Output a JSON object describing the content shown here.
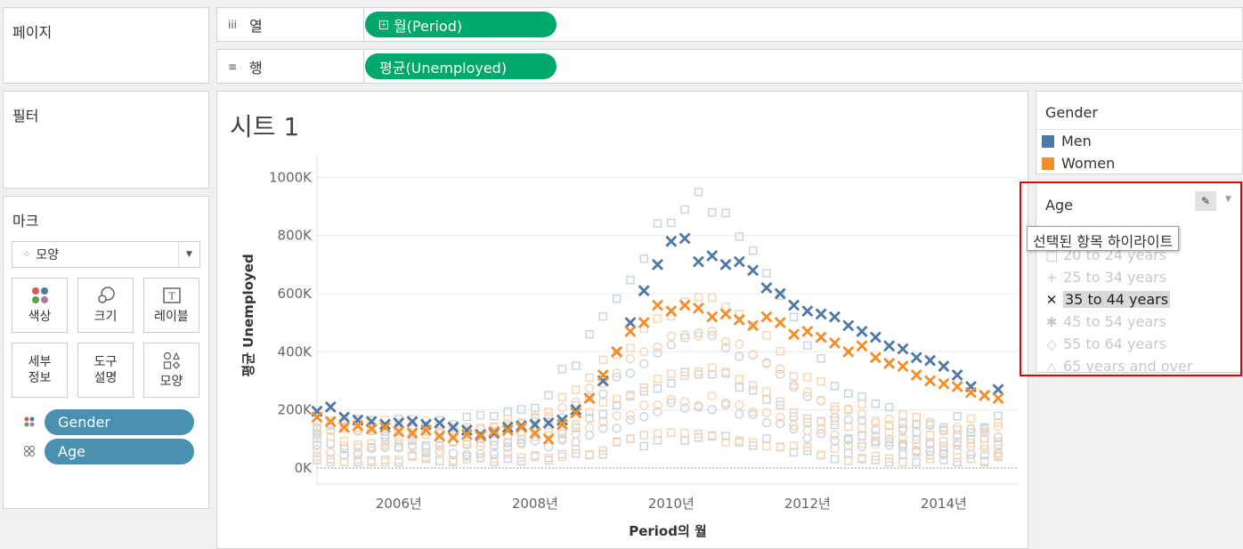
{
  "pages": {
    "title": "페이지"
  },
  "filters": {
    "title": "필터"
  },
  "columns": {
    "label": "열",
    "icon": "iii",
    "pill": "월(Period)"
  },
  "rows": {
    "label": "행",
    "icon": "≡",
    "pill": "평균(Unemployed)"
  },
  "marks": {
    "title": "마크",
    "type_label": "모양",
    "buttons": [
      {
        "label": "색상",
        "icon": "color-icon"
      },
      {
        "label": "크기",
        "icon": "size-icon"
      },
      {
        "label": "레이블",
        "icon": "label-icon"
      },
      {
        "label": "세부\n정보",
        "icon": "detail-icon"
      },
      {
        "label": "도구\n설명",
        "icon": "tooltip-icon"
      },
      {
        "label": "모양",
        "icon": "shape-icon"
      }
    ],
    "pills": [
      {
        "label": "Gender",
        "icon": "color-dots-icon"
      },
      {
        "label": "Age",
        "icon": "shape-dots-icon"
      }
    ]
  },
  "sheet": {
    "title": "시트 1"
  },
  "gender_legend": {
    "title": "Gender",
    "items": [
      {
        "label": "Men",
        "color": "#4e79a7"
      },
      {
        "label": "Women",
        "color": "#f28e2b"
      }
    ]
  },
  "age_legend": {
    "title": "Age",
    "tooltip": "선택된 항목 하이라이트",
    "items": [
      {
        "label": "20 to 24 years",
        "symbol": "□"
      },
      {
        "label": "25 to 34 years",
        "symbol": "+"
      },
      {
        "label": "35 to 44 years",
        "symbol": "✕",
        "selected": true
      },
      {
        "label": "45 to 54 years",
        "symbol": "✱"
      },
      {
        "label": "55 to 64 years",
        "symbol": "◇"
      },
      {
        "label": "65 years and over",
        "symbol": "△"
      }
    ]
  },
  "chart_data": {
    "type": "scatter",
    "xlabel": "Period의 월",
    "ylabel": "평균 Unemployed",
    "y_ticks": [
      "0K",
      "200K",
      "400K",
      "600K",
      "800K",
      "1000K"
    ],
    "x_ticks": [
      "2006년",
      "2008년",
      "2010년",
      "2012년",
      "2014년"
    ],
    "ylim": [
      0,
      1050000
    ],
    "xlim": [
      2005.0,
      2015.3
    ],
    "highlighted_series": "35 to 44 years",
    "series": [
      {
        "gender": "Men",
        "age": "35 to 44 years",
        "color": "#4e79a7",
        "points": [
          [
            2005.0,
            195000
          ],
          [
            2005.2,
            210000
          ],
          [
            2005.4,
            175000
          ],
          [
            2005.6,
            165000
          ],
          [
            2005.8,
            160000
          ],
          [
            2006.0,
            150000
          ],
          [
            2006.2,
            155000
          ],
          [
            2006.4,
            160000
          ],
          [
            2006.6,
            150000
          ],
          [
            2006.8,
            155000
          ],
          [
            2007.0,
            140000
          ],
          [
            2007.2,
            130000
          ],
          [
            2007.4,
            115000
          ],
          [
            2007.6,
            120000
          ],
          [
            2007.8,
            140000
          ],
          [
            2008.0,
            145000
          ],
          [
            2008.2,
            150000
          ],
          [
            2008.4,
            155000
          ],
          [
            2008.6,
            165000
          ],
          [
            2008.8,
            200000
          ],
          [
            2009.0,
            240000
          ],
          [
            2009.2,
            300000
          ],
          [
            2009.4,
            400000
          ],
          [
            2009.6,
            500000
          ],
          [
            2009.8,
            610000
          ],
          [
            2010.0,
            700000
          ],
          [
            2010.2,
            780000
          ],
          [
            2010.4,
            790000
          ],
          [
            2010.6,
            710000
          ],
          [
            2010.8,
            730000
          ],
          [
            2011.0,
            700000
          ],
          [
            2011.2,
            710000
          ],
          [
            2011.4,
            680000
          ],
          [
            2011.6,
            620000
          ],
          [
            2011.8,
            600000
          ],
          [
            2012.0,
            560000
          ],
          [
            2012.2,
            540000
          ],
          [
            2012.4,
            530000
          ],
          [
            2012.6,
            520000
          ],
          [
            2012.8,
            490000
          ],
          [
            2013.0,
            470000
          ],
          [
            2013.2,
            450000
          ],
          [
            2013.4,
            420000
          ],
          [
            2013.6,
            410000
          ],
          [
            2013.8,
            380000
          ],
          [
            2014.0,
            370000
          ],
          [
            2014.2,
            350000
          ],
          [
            2014.4,
            320000
          ],
          [
            2014.6,
            280000
          ],
          [
            2014.8,
            250000
          ],
          [
            2015.0,
            270000
          ]
        ]
      },
      {
        "gender": "Women",
        "age": "35 to 44 years",
        "color": "#f28e2b",
        "points": [
          [
            2005.0,
            175000
          ],
          [
            2005.2,
            160000
          ],
          [
            2005.4,
            140000
          ],
          [
            2005.6,
            145000
          ],
          [
            2005.8,
            135000
          ],
          [
            2006.0,
            140000
          ],
          [
            2006.2,
            125000
          ],
          [
            2006.4,
            120000
          ],
          [
            2006.6,
            130000
          ],
          [
            2006.8,
            110000
          ],
          [
            2007.0,
            105000
          ],
          [
            2007.2,
            115000
          ],
          [
            2007.4,
            110000
          ],
          [
            2007.6,
            125000
          ],
          [
            2007.8,
            130000
          ],
          [
            2008.0,
            140000
          ],
          [
            2008.2,
            120000
          ],
          [
            2008.4,
            100000
          ],
          [
            2008.6,
            150000
          ],
          [
            2008.8,
            190000
          ],
          [
            2009.0,
            240000
          ],
          [
            2009.2,
            320000
          ],
          [
            2009.4,
            400000
          ],
          [
            2009.6,
            470000
          ],
          [
            2009.8,
            500000
          ],
          [
            2010.0,
            560000
          ],
          [
            2010.2,
            540000
          ],
          [
            2010.4,
            560000
          ],
          [
            2010.6,
            550000
          ],
          [
            2010.8,
            520000
          ],
          [
            2011.0,
            530000
          ],
          [
            2011.2,
            510000
          ],
          [
            2011.4,
            490000
          ],
          [
            2011.6,
            520000
          ],
          [
            2011.8,
            500000
          ],
          [
            2012.0,
            460000
          ],
          [
            2012.2,
            470000
          ],
          [
            2012.4,
            450000
          ],
          [
            2012.6,
            430000
          ],
          [
            2012.8,
            400000
          ],
          [
            2013.0,
            420000
          ],
          [
            2013.2,
            380000
          ],
          [
            2013.4,
            360000
          ],
          [
            2013.6,
            350000
          ],
          [
            2013.8,
            320000
          ],
          [
            2014.0,
            300000
          ],
          [
            2014.2,
            290000
          ],
          [
            2014.4,
            280000
          ],
          [
            2014.6,
            260000
          ],
          [
            2014.8,
            250000
          ],
          [
            2015.0,
            240000
          ]
        ]
      }
    ]
  }
}
